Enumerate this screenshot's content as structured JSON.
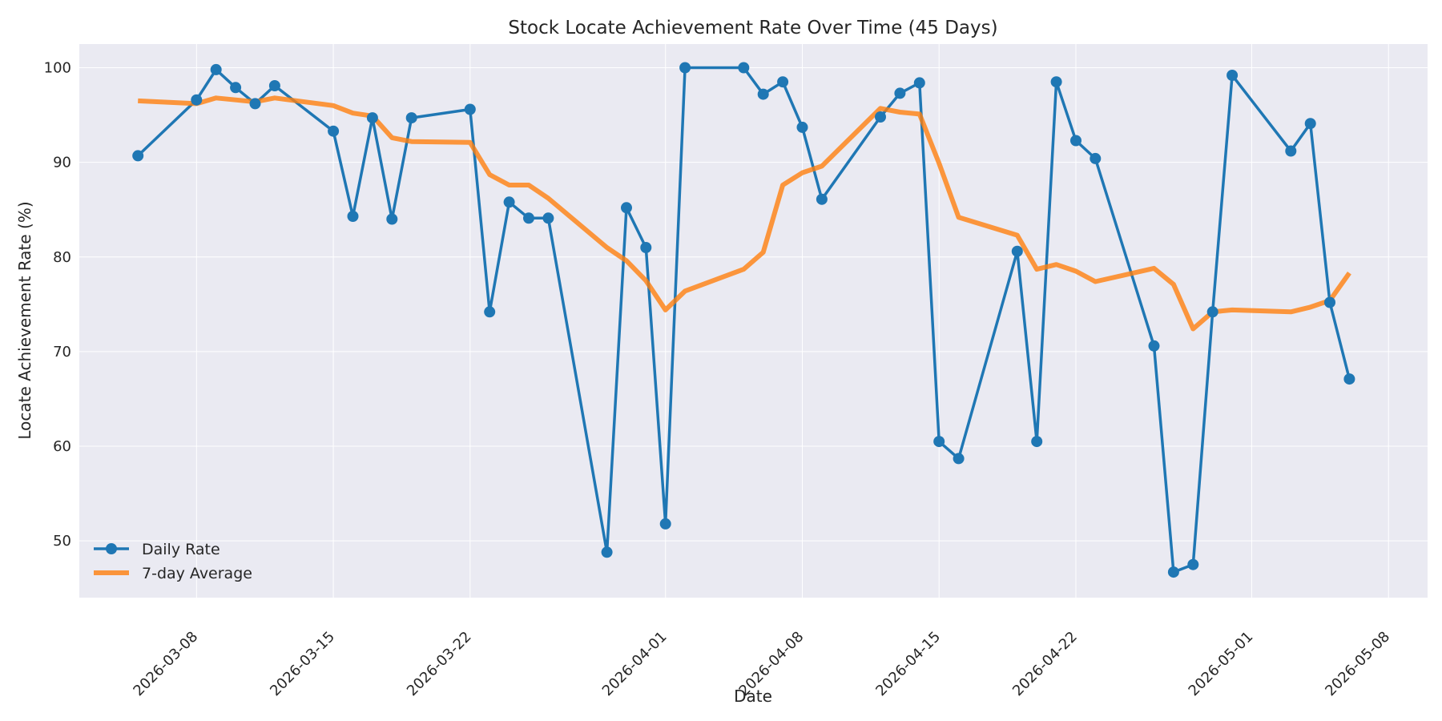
{
  "chart_data": {
    "type": "line",
    "title": "Stock Locate Achievement Rate Over Time (45 Days)",
    "xlabel": "Date",
    "ylabel": "Locate Achievement Rate (%)",
    "xlim": [
      "2026-03-02",
      "2026-05-10"
    ],
    "ylim": [
      44,
      102.5
    ],
    "x_ticks": [
      "2026-03-08",
      "2026-03-15",
      "2026-03-22",
      "2026-04-01",
      "2026-04-08",
      "2026-04-15",
      "2026-04-22",
      "2026-05-01",
      "2026-05-08"
    ],
    "y_ticks": [
      50,
      60,
      70,
      80,
      90,
      100
    ],
    "grid": true,
    "legend_position": "lower-left",
    "colors": {
      "plot_background": "#eaeaf2",
      "grid": "#ffffff",
      "daily": "#1f77b4",
      "average": "#ff7f0e"
    },
    "series": [
      {
        "name": "Daily Rate",
        "style": "line-with-markers",
        "x": [
          "2026-03-05",
          "2026-03-08",
          "2026-03-09",
          "2026-03-10",
          "2026-03-11",
          "2026-03-12",
          "2026-03-15",
          "2026-03-16",
          "2026-03-17",
          "2026-03-18",
          "2026-03-19",
          "2026-03-22",
          "2026-03-23",
          "2026-03-24",
          "2026-03-25",
          "2026-03-26",
          "2026-03-29",
          "2026-03-30",
          "2026-03-31",
          "2026-04-01",
          "2026-04-02",
          "2026-04-05",
          "2026-04-06",
          "2026-04-07",
          "2026-04-08",
          "2026-04-09",
          "2026-04-12",
          "2026-04-13",
          "2026-04-14",
          "2026-04-15",
          "2026-04-16",
          "2026-04-19",
          "2026-04-20",
          "2026-04-21",
          "2026-04-22",
          "2026-04-23",
          "2026-04-26",
          "2026-04-27",
          "2026-04-28",
          "2026-04-29",
          "2026-04-30",
          "2026-05-03",
          "2026-05-04",
          "2026-05-05",
          "2026-05-06"
        ],
        "values": [
          90.7,
          96.6,
          99.8,
          97.9,
          96.2,
          98.1,
          93.3,
          84.3,
          94.7,
          84.0,
          94.7,
          95.6,
          74.2,
          85.8,
          84.1,
          84.1,
          48.8,
          85.2,
          81.0,
          51.8,
          100.0,
          100.0,
          97.2,
          98.5,
          93.7,
          86.1,
          94.8,
          97.3,
          98.4,
          60.5,
          58.7,
          80.6,
          60.5,
          98.5,
          92.3,
          90.4,
          70.6,
          46.7,
          47.5,
          74.2,
          99.2,
          91.2,
          94.1,
          75.2,
          67.1
        ]
      },
      {
        "name": "7-day Average",
        "style": "line",
        "x": [
          "2026-03-05",
          "2026-03-08",
          "2026-03-09",
          "2026-03-10",
          "2026-03-11",
          "2026-03-12",
          "2026-03-15",
          "2026-03-16",
          "2026-03-17",
          "2026-03-18",
          "2026-03-19",
          "2026-03-22",
          "2026-03-23",
          "2026-03-24",
          "2026-03-25",
          "2026-03-26",
          "2026-03-29",
          "2026-03-30",
          "2026-03-31",
          "2026-04-01",
          "2026-04-02",
          "2026-04-05",
          "2026-04-06",
          "2026-04-07",
          "2026-04-08",
          "2026-04-09",
          "2026-04-12",
          "2026-04-13",
          "2026-04-14",
          "2026-04-15",
          "2026-04-16",
          "2026-04-19",
          "2026-04-20",
          "2026-04-21",
          "2026-04-22",
          "2026-04-23",
          "2026-04-26",
          "2026-04-27",
          "2026-04-28",
          "2026-04-29",
          "2026-04-30",
          "2026-05-03",
          "2026-05-04",
          "2026-05-05",
          "2026-05-06"
        ],
        "values": [
          96.5,
          96.2,
          96.8,
          96.6,
          96.4,
          96.8,
          96.0,
          95.2,
          94.9,
          92.6,
          92.2,
          92.1,
          88.7,
          87.6,
          87.6,
          86.2,
          81.0,
          79.6,
          77.5,
          74.4,
          76.4,
          78.7,
          80.5,
          87.6,
          88.9,
          89.6,
          95.7,
          95.3,
          95.1,
          89.9,
          84.2,
          82.3,
          78.7,
          79.2,
          78.5,
          77.4,
          78.8,
          77.1,
          72.4,
          74.2,
          74.4,
          74.2,
          74.7,
          75.4,
          78.3
        ]
      }
    ]
  }
}
